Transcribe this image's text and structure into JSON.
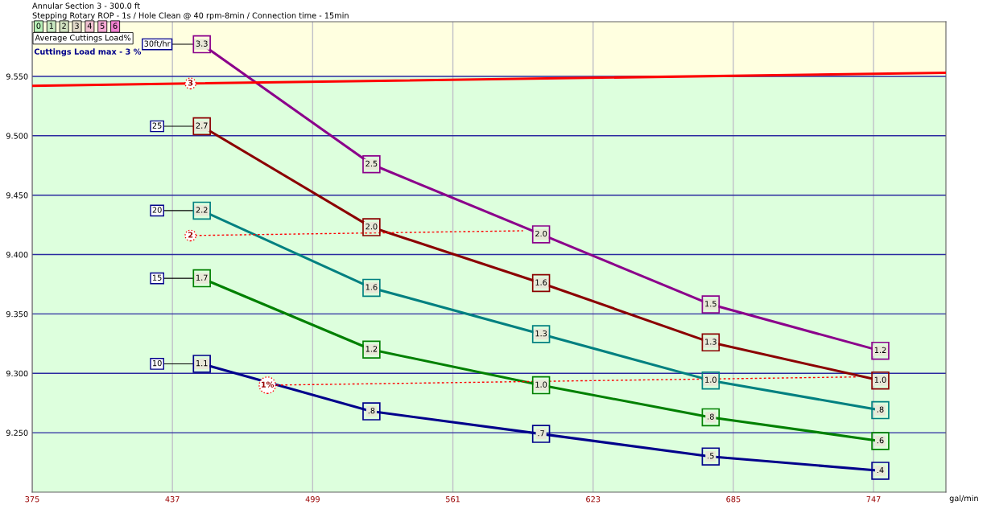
{
  "chart_data": {
    "type": "line",
    "title": "Annular Section 3 - 300.0 ft",
    "subtitle": "Stepping Rotary ROP - 1s / Hole Clean @ 40 rpm-8min / Connection time - 15min",
    "xlabel": "gal/min",
    "legend_title": "Average Cuttings Load%",
    "annotations": [
      "Cuttings Load max - 3 %",
      "0",
      "1",
      "2",
      "3",
      "4",
      "5",
      "6",
      {
        "text": "3.3",
        "x": 450,
        "y": 9.577
      },
      {
        "text": "2.5",
        "x": 525,
        "y": 9.476
      },
      {
        "text": "2.0",
        "x": 600,
        "y": 9.417
      },
      {
        "text": "1.5",
        "x": 675,
        "y": 9.358
      },
      {
        "text": "1.2",
        "x": 750,
        "y": 9.319
      },
      {
        "text": "2.7",
        "x": 450,
        "y": 9.508
      },
      {
        "text": "2.0",
        "x": 525,
        "y": 9.423
      },
      {
        "text": "1.6",
        "x": 600,
        "y": 9.376
      },
      {
        "text": "1.3",
        "x": 675,
        "y": 9.326
      },
      {
        "text": "1.0",
        "x": 750,
        "y": 9.294
      },
      {
        "text": "2.2",
        "x": 450,
        "y": 9.437
      },
      {
        "text": "1.6",
        "x": 525,
        "y": 9.372
      },
      {
        "text": "1.3",
        "x": 600,
        "y": 9.333
      },
      {
        "text": "1.0",
        "x": 675,
        "y": 9.294
      },
      {
        "text": ".8",
        "x": 750,
        "y": 9.269
      },
      {
        "text": "1.7",
        "x": 450,
        "y": 9.38
      },
      {
        "text": "1.2",
        "x": 525,
        "y": 9.32
      },
      {
        "text": "1.0",
        "x": 600,
        "y": 9.29
      },
      {
        "text": ".8",
        "x": 675,
        "y": 9.263
      },
      {
        "text": ".6",
        "x": 750,
        "y": 9.243
      },
      {
        "text": "1.1",
        "x": 450,
        "y": 9.308
      },
      {
        "text": ".8",
        "x": 525,
        "y": 9.268
      },
      {
        "text": ".7",
        "x": 600,
        "y": 9.249
      },
      {
        "text": ".5",
        "x": 675,
        "y": 9.23
      },
      {
        "text": ".4",
        "x": 750,
        "y": 9.218
      }
    ],
    "xlim": [
      375,
      779
    ],
    "xticks": [
      375,
      437,
      499,
      561,
      623,
      685,
      747
    ],
    "ylim": [
      9.2,
      9.596
    ],
    "yticks": [
      {
        "value": 9.25,
        "label": "9.250"
      },
      {
        "value": 9.3,
        "label": "9.300"
      },
      {
        "value": 9.35,
        "label": "9.350"
      },
      {
        "value": 9.4,
        "label": "9.400"
      },
      {
        "value": 9.45,
        "label": "9.450"
      },
      {
        "value": 9.5,
        "label": "9.500"
      },
      {
        "value": 9.55,
        "label": "9.550"
      }
    ],
    "grid": true,
    "bands": [
      {
        "axis": "y",
        "from": 9.55,
        "to": 9.596,
        "color": "#ffffe0"
      },
      {
        "axis": "y",
        "from": 9.2,
        "to": 9.55,
        "color": "#ddffdd"
      }
    ],
    "x": [
      450,
      525,
      600,
      675,
      750
    ],
    "series": [
      {
        "name": "30ft/hr",
        "color": "#8b008b",
        "marker": "square",
        "values": [
          9.577,
          9.476,
          9.417,
          9.358,
          9.319
        ]
      },
      {
        "name": "25",
        "color": "#8b0000",
        "marker": "square",
        "values": [
          9.508,
          9.423,
          9.376,
          9.326,
          9.294
        ]
      },
      {
        "name": "20",
        "color": "#008080",
        "marker": "square",
        "values": [
          9.437,
          9.372,
          9.333,
          9.294,
          9.269
        ]
      },
      {
        "name": "15",
        "color": "#008000",
        "marker": "square",
        "values": [
          9.38,
          9.32,
          9.29,
          9.263,
          9.243
        ]
      },
      {
        "name": "10",
        "color": "#00008b",
        "marker": "square",
        "values": [
          9.308,
          9.268,
          9.249,
          9.23,
          9.218
        ]
      },
      {
        "name": "3",
        "color": "#ff0000",
        "line_style": "solid",
        "x": [
          375,
          445,
          779
        ],
        "values": [
          9.542,
          9.544,
          9.553
        ]
      },
      {
        "name": "2",
        "color": "#ff0000",
        "line_style": "dotted",
        "x": [
          445,
          592
        ],
        "values": [
          9.416,
          9.42
        ]
      },
      {
        "name": "1%",
        "color": "#ff0000",
        "line_style": "dotted",
        "x": [
          479,
          740
        ],
        "values": [
          9.29,
          9.297
        ]
      }
    ]
  }
}
